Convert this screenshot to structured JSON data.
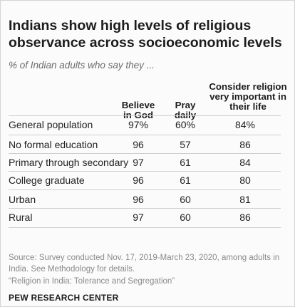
{
  "title": "Indians show high levels of religious observance across socioeconomic levels",
  "subtitle": "% of Indian adults who say they ...",
  "chart_data": {
    "type": "table",
    "columns": [
      "Believe in God",
      "Pray daily",
      "Consider religion very important in their life"
    ],
    "column_header_lines": [
      [
        "Believe",
        "in God"
      ],
      [
        "Pray",
        "daily"
      ],
      [
        "Consider religion",
        "very important in",
        "their life"
      ]
    ],
    "rows": [
      {
        "label": "General population",
        "values": [
          "97%",
          "60%",
          "84%"
        ]
      },
      {
        "label": "No formal education",
        "values": [
          "96",
          "57",
          "86"
        ]
      },
      {
        "label": "Primary through secondary",
        "values": [
          "97",
          "61",
          "84"
        ]
      },
      {
        "label": "College graduate",
        "values": [
          "96",
          "61",
          "80"
        ]
      },
      {
        "label": "Urban",
        "values": [
          "96",
          "60",
          "81"
        ]
      },
      {
        "label": "Rural",
        "values": [
          "97",
          "60",
          "86"
        ]
      }
    ]
  },
  "source": "Source: Survey conducted Nov. 17, 2019-March 23, 2020, among adults in India. See Methodology for details.",
  "report_note": "“Religion in India: Tolerance and Segregation”",
  "brand": "PEW RESEARCH CENTER",
  "colors": {
    "text": "#222222",
    "muted": "#8a8a8a",
    "rule": "#cfcfcf",
    "background": "#fbfbfb"
  }
}
